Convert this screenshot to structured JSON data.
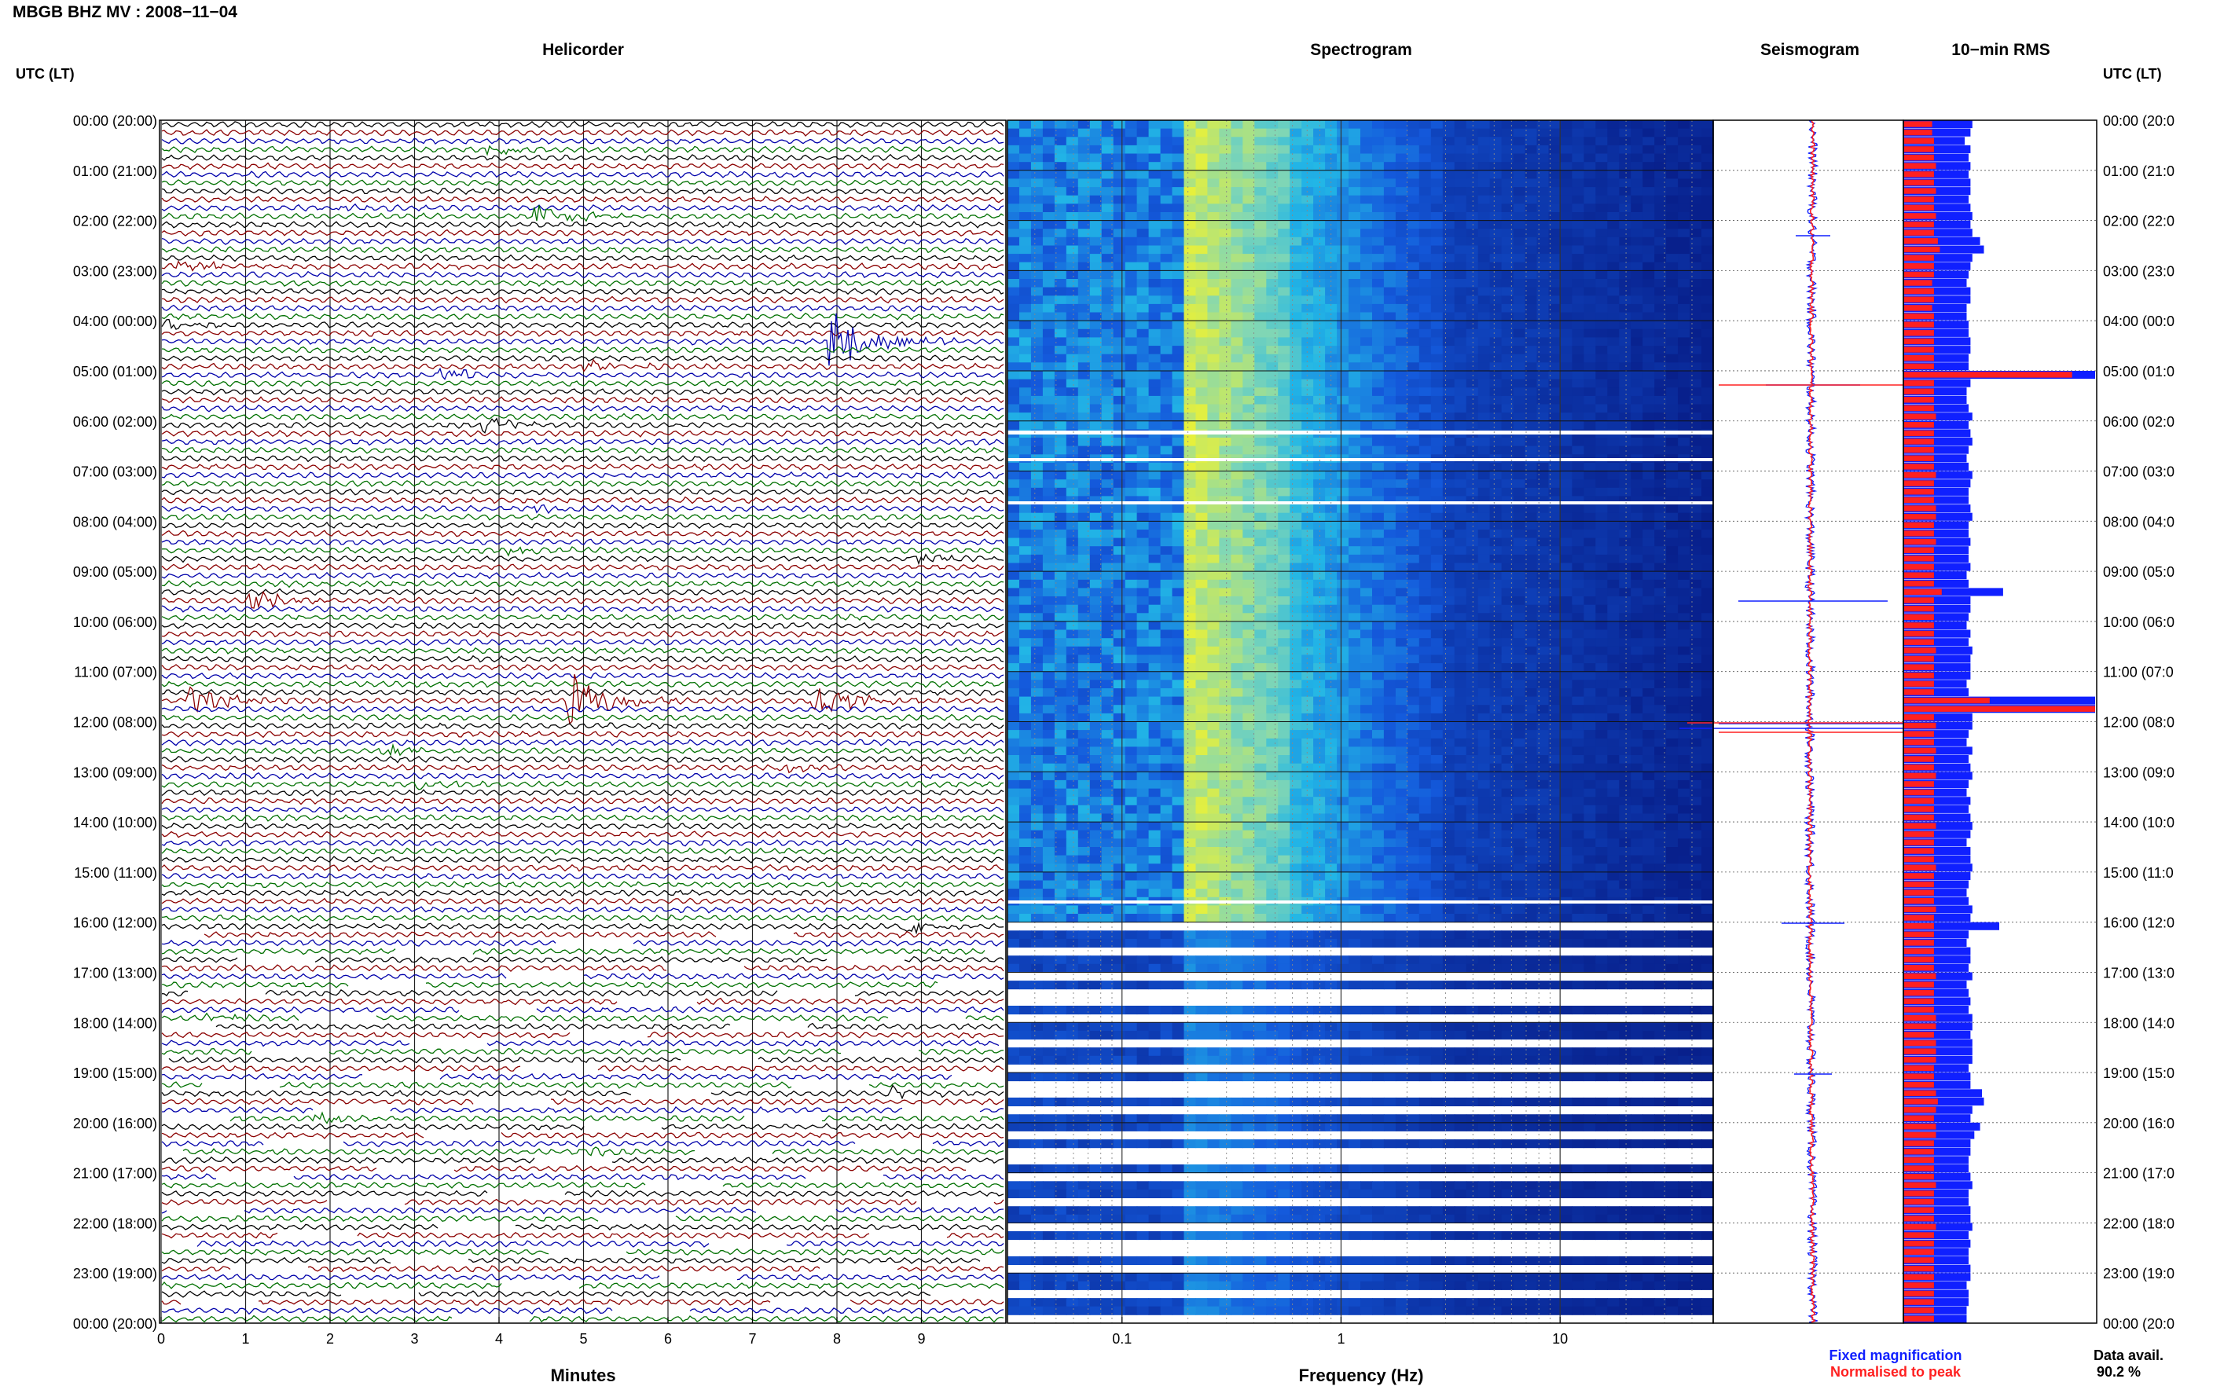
{
  "title": "MBGB BHZ MV : 2008−11−04",
  "colors": {
    "black": "#000000",
    "red": "#8b0000",
    "blue": "#0000aa",
    "green": "#007000",
    "spec_low": "#08208c",
    "spec_mid": "#22b6e6",
    "spec_high": "#e6f03c",
    "fixed": "#1020ff",
    "normalised": "#ff2020"
  },
  "panels": {
    "helicorder": "Helicorder",
    "spectrogram": "Spectrogram",
    "seismogram": "Seismogram",
    "rms": "10−min RMS"
  },
  "left_header": "UTC (LT)",
  "right_header": "UTC (LT)",
  "xlabels": {
    "helicorder": "Minutes",
    "spectrogram": "Frequency (Hz)"
  },
  "legend": {
    "fixed": "Fixed magnification",
    "normalised": "Normalised to peak"
  },
  "data_avail": {
    "label": "Data avail.",
    "value": "90.2 %"
  },
  "chart_data": [
    {
      "type": "line",
      "panel": "Helicorder",
      "xlabel": "Minutes",
      "xticks": [
        "0",
        "1",
        "2",
        "3",
        "4",
        "5",
        "6",
        "7",
        "8",
        "9"
      ],
      "xlim": [
        0,
        10
      ],
      "time_labels": [
        "00:00 (20:00)",
        "01:00 (21:00)",
        "02:00 (22:00)",
        "03:00 (23:00)",
        "04:00 (00:00)",
        "05:00 (01:00)",
        "06:00 (02:00)",
        "07:00 (03:00)",
        "08:00 (04:00)",
        "09:00 (05:00)",
        "10:00 (06:00)",
        "11:00 (07:00)",
        "12:00 (08:00)",
        "13:00 (09:00)",
        "14:00 (10:00)",
        "15:00 (11:00)",
        "16:00 (12:00)",
        "17:00 (13:00)",
        "18:00 (14:00)",
        "19:00 (15:00)",
        "20:00 (16:00)",
        "21:00 (17:00)",
        "22:00 (18:00)",
        "23:00 (19:00)",
        "00:00 (20:00)"
      ],
      "right_time_labels": [
        "00:00 (20:0",
        "01:00 (21:0",
        "02:00 (22:0",
        "03:00 (23:0",
        "04:00 (00:0",
        "05:00 (01:0",
        "06:00 (02:0",
        "07:00 (03:0",
        "08:00 (04:0",
        "09:00 (05:0",
        "10:00 (06:0",
        "11:00 (07:0",
        "12:00 (08:0",
        "13:00 (09:0",
        "14:00 (10:0",
        "15:00 (11:0",
        "16:00 (12:0",
        "17:00 (13:0",
        "18:00 (14:0",
        "19:00 (15:0",
        "20:00 (16:0",
        "21:00 (17:0",
        "22:00 (18:0",
        "23:00 (19:0",
        "00:00 (20:0"
      ],
      "trace_count": 144,
      "events": [
        {
          "trace": 3,
          "minute": 3.8,
          "amp": 0.6
        },
        {
          "trace": 10,
          "minute": 2.0,
          "amp": 0.4
        },
        {
          "trace": 11,
          "minute": 4.4,
          "amp": 1.2
        },
        {
          "trace": 17,
          "minute": 0.2,
          "amp": 0.7
        },
        {
          "trace": 24,
          "minute": 0.0,
          "amp": 0.6
        },
        {
          "trace": 26,
          "minute": 7.9,
          "amp": 3.5
        },
        {
          "trace": 29,
          "minute": 5.0,
          "amp": 0.6
        },
        {
          "trace": 30,
          "minute": 3.3,
          "amp": 0.6
        },
        {
          "trace": 36,
          "minute": 3.8,
          "amp": 0.7
        },
        {
          "trace": 46,
          "minute": 4.4,
          "amp": 0.5
        },
        {
          "trace": 51,
          "minute": 4.1,
          "amp": 0.5
        },
        {
          "trace": 52,
          "minute": 8.9,
          "amp": 0.5
        },
        {
          "trace": 57,
          "minute": 1.0,
          "amp": 1.0
        },
        {
          "trace": 69,
          "minute": 0.3,
          "amp": 1.6
        },
        {
          "trace": 69,
          "minute": 4.8,
          "amp": 2.8
        },
        {
          "trace": 69,
          "minute": 7.7,
          "amp": 1.9
        },
        {
          "trace": 75,
          "minute": 2.6,
          "amp": 0.6
        },
        {
          "trace": 77,
          "minute": 7.3,
          "amp": 0.5
        },
        {
          "trace": 79,
          "minute": 3.0,
          "amp": 0.5
        },
        {
          "trace": 96,
          "minute": 8.8,
          "amp": 0.8
        },
        {
          "trace": 107,
          "minute": 0.5,
          "amp": 0.4
        },
        {
          "trace": 116,
          "minute": 8.6,
          "amp": 0.6
        },
        {
          "trace": 119,
          "minute": 1.8,
          "amp": 0.5
        },
        {
          "trace": 123,
          "minute": 5.0,
          "amp": 0.5
        }
      ]
    },
    {
      "type": "heatmap",
      "panel": "Spectrogram",
      "xlabel": "Frequency (Hz)",
      "xscale": "log",
      "xlim": [
        0.03,
        50
      ],
      "xticks": [
        "0.1",
        "1",
        "10"
      ],
      "peak_band_hz": [
        0.2,
        0.5
      ],
      "high_level_until": "16:00 (12:00)"
    },
    {
      "type": "line",
      "panel": "Seismogram",
      "series": [
        {
          "name": "Fixed magnification"
        },
        {
          "name": "Normalised to peak"
        }
      ]
    },
    {
      "type": "bar",
      "panel": "10−min RMS",
      "orientation": "horizontal",
      "series": [
        {
          "name": "Fixed magnification",
          "values": [
            0.36,
            0.35,
            0.32,
            0.35,
            0.34,
            0.35,
            0.34,
            0.35,
            0.35,
            0.34,
            0.35,
            0.36,
            0.35,
            0.36,
            0.4,
            0.42,
            0.36,
            0.35,
            0.34,
            0.33,
            0.35,
            0.35,
            0.33,
            0.33,
            0.34,
            0.34,
            0.35,
            0.35,
            0.34,
            0.34,
            1.0,
            0.35,
            0.33,
            0.33,
            0.34,
            0.36,
            0.34,
            0.35,
            0.36,
            0.34,
            0.33,
            0.34,
            0.36,
            0.35,
            0.34,
            0.34,
            0.35,
            0.36,
            0.34,
            0.34,
            0.35,
            0.34,
            0.34,
            0.35,
            0.33,
            0.34,
            0.52,
            0.35,
            0.35,
            0.34,
            0.33,
            0.35,
            0.34,
            0.36,
            0.35,
            0.35,
            0.35,
            0.33,
            0.34,
            1.0,
            1.0,
            0.36,
            0.36,
            0.34,
            0.33,
            0.36,
            0.34,
            0.35,
            0.36,
            0.34,
            0.33,
            0.35,
            0.34,
            0.35,
            0.36,
            0.35,
            0.33,
            0.35,
            0.35,
            0.36,
            0.35,
            0.34,
            0.33,
            0.34,
            0.36,
            0.35,
            0.5,
            0.34,
            0.33,
            0.35,
            0.35,
            0.34,
            0.36,
            0.33,
            0.34,
            0.35,
            0.34,
            0.36,
            0.36,
            0.35,
            0.36,
            0.36,
            0.36,
            0.34,
            0.35,
            0.35,
            0.41,
            0.42,
            0.36,
            0.35,
            0.4,
            0.37,
            0.35,
            0.35,
            0.34,
            0.34,
            0.35,
            0.36,
            0.34,
            0.34,
            0.35,
            0.35,
            0.36,
            0.34,
            0.35,
            0.34,
            0.34,
            0.35,
            0.35,
            0.33,
            0.34,
            0.34,
            0.33,
            0.33
          ]
        },
        {
          "name": "Normalised to peak",
          "values": [
            0.15,
            0.15,
            0.16,
            0.16,
            0.16,
            0.17,
            0.16,
            0.16,
            0.17,
            0.16,
            0.16,
            0.17,
            0.16,
            0.16,
            0.18,
            0.19,
            0.16,
            0.16,
            0.16,
            0.15,
            0.16,
            0.16,
            0.15,
            0.16,
            0.16,
            0.16,
            0.16,
            0.16,
            0.16,
            0.16,
            0.88,
            0.16,
            0.16,
            0.16,
            0.16,
            0.17,
            0.16,
            0.16,
            0.16,
            0.16,
            0.16,
            0.16,
            0.17,
            0.16,
            0.16,
            0.16,
            0.17,
            0.17,
            0.16,
            0.16,
            0.17,
            0.16,
            0.16,
            0.16,
            0.16,
            0.16,
            0.2,
            0.16,
            0.16,
            0.16,
            0.16,
            0.16,
            0.16,
            0.17,
            0.16,
            0.16,
            0.16,
            0.16,
            0.16,
            0.45,
            1.0,
            0.16,
            0.17,
            0.16,
            0.16,
            0.17,
            0.16,
            0.16,
            0.17,
            0.16,
            0.16,
            0.16,
            0.16,
            0.16,
            0.17,
            0.16,
            0.16,
            0.16,
            0.16,
            0.17,
            0.16,
            0.16,
            0.16,
            0.16,
            0.17,
            0.16,
            0.16,
            0.16,
            0.16,
            0.16,
            0.16,
            0.16,
            0.17,
            0.16,
            0.16,
            0.16,
            0.16,
            0.17,
            0.17,
            0.16,
            0.17,
            0.17,
            0.17,
            0.16,
            0.16,
            0.16,
            0.17,
            0.18,
            0.17,
            0.16,
            0.17,
            0.17,
            0.16,
            0.16,
            0.16,
            0.16,
            0.16,
            0.17,
            0.16,
            0.16,
            0.16,
            0.16,
            0.17,
            0.16,
            0.16,
            0.16,
            0.16,
            0.16,
            0.16,
            0.16,
            0.16,
            0.16,
            0.16,
            0.16
          ]
        }
      ]
    }
  ]
}
